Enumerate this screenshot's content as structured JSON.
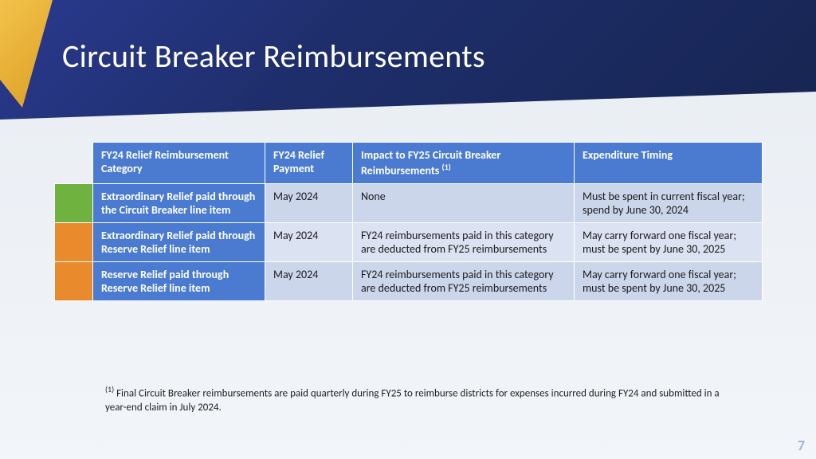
{
  "title": "Circuit Breaker Reimbursements",
  "table": {
    "headers": {
      "col1": "FY24 Relief Reimbursement Category",
      "col2": "FY24 Relief Payment",
      "col3_pre": "Impact to FY25 Circuit Breaker Reimbursements ",
      "col3_sup": "(1)",
      "col4": "Expenditure Timing"
    },
    "rows": [
      {
        "swatch": "#6fb23f",
        "category": "Extraordinary Relief paid through the Circuit Breaker line item",
        "payment": "May 2024",
        "impact": "None",
        "timing": "Must be spent in current fiscal year; spend by June 30, 2024"
      },
      {
        "swatch": "#e98b2d",
        "category": "Extraordinary Relief paid through Reserve Relief line item",
        "payment": "May 2024",
        "impact": "FY24 reimbursements paid in this category are deducted from FY25 reimbursements",
        "timing": "May carry forward one fiscal year; must be spent by June 30, 2025"
      },
      {
        "swatch": "#e98b2d",
        "category": "Reserve Relief paid through Reserve Relief line item",
        "payment": "May 2024",
        "impact": "FY24 reimbursements paid in this category are deducted from FY25 reimbursements",
        "timing": "May carry forward one fiscal year; must be spent by June 30, 2025"
      }
    ]
  },
  "footnote": {
    "sup": "(1)",
    "text": " Final Circuit Breaker reimbursements are paid quarterly during FY25 to reimburse districts for expenses incurred during FY24 and submitted in a year-end claim in July 2024."
  },
  "page_number": "7",
  "colors": {
    "header_blue": "#4a7bd0",
    "row_even": "#ccd6eb",
    "row_odd": "#dbe2f1",
    "gold": "#e8a831",
    "deep_navy": "#1e2e6b"
  }
}
